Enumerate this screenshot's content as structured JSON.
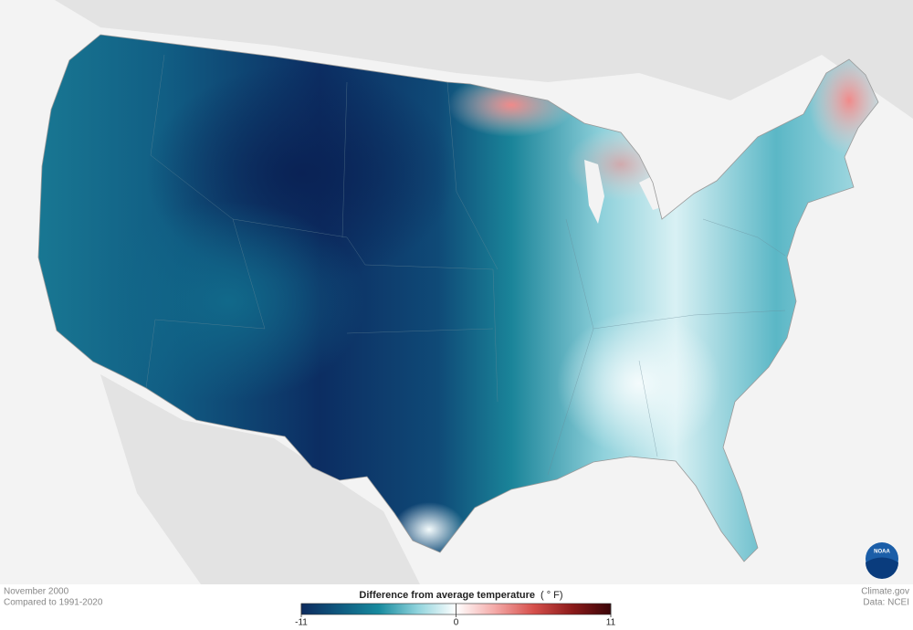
{
  "caption": {
    "period": "November 2000",
    "baseline": "Compared to 1991-2020"
  },
  "legend": {
    "title": "Difference from average temperature",
    "unit": "( ° F)",
    "min": -11,
    "max": 11,
    "ticks": [
      -11,
      0,
      11
    ],
    "colors": [
      "#0d2b5e",
      "#0f5a80",
      "#178a9e",
      "#8fd3dc",
      "#ffffff",
      "#f4aaa8",
      "#d6504c",
      "#8c1a1a",
      "#3a0508"
    ]
  },
  "credits": {
    "site": "Climate.gov",
    "source": "Data: NCEI"
  },
  "logo": "NOAA"
}
